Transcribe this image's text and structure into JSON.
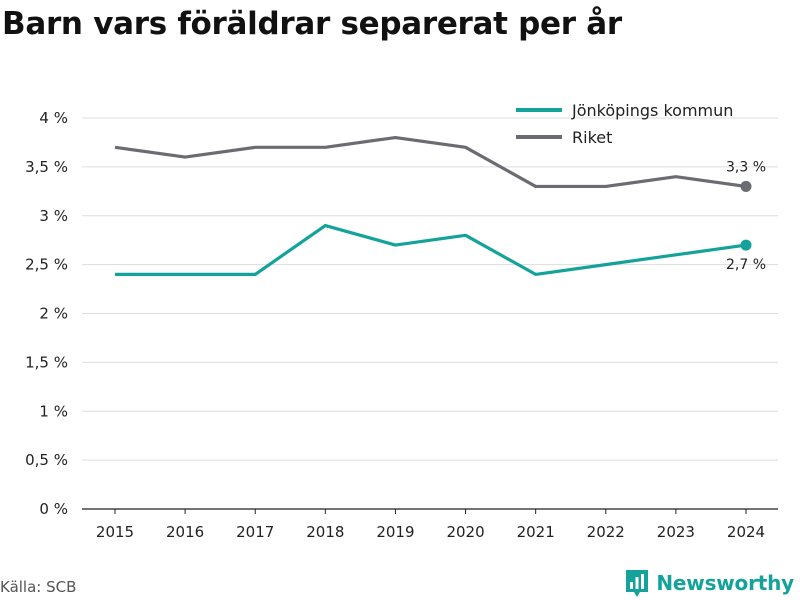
{
  "header": {
    "title": "Barn vars föräldrar separerat per år"
  },
  "footer": {
    "source": "Källa: SCB",
    "brand_name": "Newsworthy"
  },
  "colors": {
    "jonkoping": "#14a29a",
    "riket": "#6b6b72",
    "grid": "#dddddd",
    "brand": "#14a29a"
  },
  "icons": {
    "brand_logo": "bar-chart-flag-icon"
  },
  "chart_data": {
    "type": "line",
    "title": "Barn vars föräldrar separerat per år",
    "xlabel": "",
    "ylabel": "",
    "x": [
      2015,
      2016,
      2017,
      2018,
      2019,
      2020,
      2021,
      2022,
      2023,
      2024
    ],
    "ylim": [
      0,
      4
    ],
    "yticks": [
      0,
      0.5,
      1,
      1.5,
      2,
      2.5,
      3,
      3.5,
      4
    ],
    "ytick_labels": [
      "0 %",
      "0,5 %",
      "1 %",
      "1,5 %",
      "2 %",
      "2,5 %",
      "3 %",
      "3,5 %",
      "4 %"
    ],
    "grid": true,
    "legend": "top-right",
    "series": [
      {
        "name": "Jönköpings kommun",
        "values": [
          2.4,
          2.4,
          2.4,
          2.9,
          2.7,
          2.8,
          2.4,
          2.5,
          2.6,
          2.7
        ],
        "end_label": "2,7 %"
      },
      {
        "name": "Riket",
        "values": [
          3.7,
          3.6,
          3.7,
          3.7,
          3.8,
          3.7,
          3.3,
          3.3,
          3.4,
          3.3
        ],
        "end_label": "3,3 %"
      }
    ]
  }
}
